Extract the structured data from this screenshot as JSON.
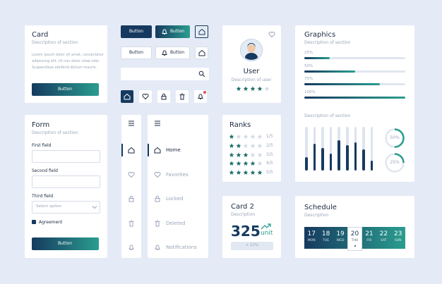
{
  "card": {
    "title": "Card",
    "description": "Description of section",
    "body": [
      "Lorem ipsum dolor sit amet, consectetur",
      "adipiscing elit. Ut non dolor vitae odio",
      "Suspendisse eleifend dictum mauris."
    ],
    "button": "Button"
  },
  "buttons": {
    "primary": "Button",
    "primary_icon": "Button",
    "secondary": "Button",
    "secondary_icon": "Button"
  },
  "user": {
    "name": "User",
    "description": "Description of user",
    "rating": 4
  },
  "graphics": {
    "title": "Graphics",
    "description": "Description of section",
    "progress": [
      {
        "value": 25,
        "label": "25%"
      },
      {
        "value": 50,
        "label": "50%"
      },
      {
        "value": 75,
        "label": "75%"
      },
      {
        "value": 100,
        "label": "100%"
      }
    ],
    "chart_description": "Description of section",
    "bars": [
      30,
      62,
      52,
      38,
      70,
      58,
      64,
      48,
      22
    ],
    "gauges": [
      {
        "value": 50,
        "label": "50%"
      },
      {
        "value": 25,
        "label": "25%"
      }
    ]
  },
  "form": {
    "title": "Form",
    "description": "Description of section",
    "fields": [
      {
        "label": "First field"
      },
      {
        "label": "Second field"
      },
      {
        "label": "Third field",
        "placeholder": "Select option"
      }
    ],
    "checkbox": "Agreement",
    "button": "Button"
  },
  "nav": {
    "items": [
      "Home",
      "Favorites",
      "Locked",
      "Deleted",
      "Notifications"
    ],
    "active": 0
  },
  "ranks": {
    "title": "Ranks",
    "rows": [
      {
        "label": "1/5",
        "stars": 1
      },
      {
        "label": "2/5",
        "stars": 2
      },
      {
        "label": "3/5",
        "stars": 3
      },
      {
        "label": "4/5",
        "stars": 4
      },
      {
        "label": "5/5",
        "stars": 5
      }
    ]
  },
  "card2": {
    "title": "Card 2",
    "description": "Description",
    "value": 325,
    "unit": "unit",
    "change": "+ 12%"
  },
  "schedule": {
    "title": "Schedule",
    "description": "Description",
    "selected": 3,
    "days": [
      {
        "date": 17,
        "day": "MON"
      },
      {
        "date": 18,
        "day": "TUE"
      },
      {
        "date": 19,
        "day": "WED"
      },
      {
        "date": 20,
        "day": "THU"
      },
      {
        "date": 21,
        "day": "FRI"
      },
      {
        "date": 22,
        "day": "SAT"
      },
      {
        "date": 23,
        "day": "SUN"
      }
    ]
  }
}
